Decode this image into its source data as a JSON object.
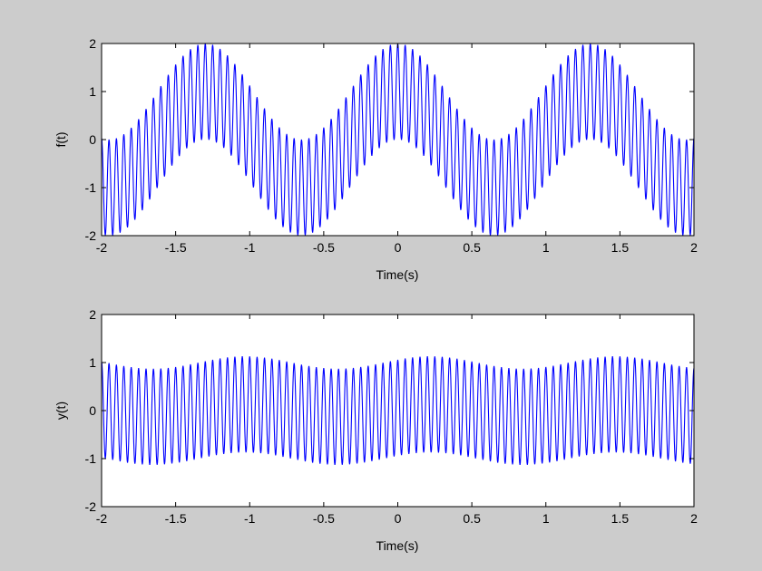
{
  "figure": {
    "background": "#cccccc",
    "plot_background": "#ffffff",
    "line_color": "#0000ff"
  },
  "chart_data": [
    {
      "type": "line",
      "title": "",
      "xlabel": "Time(s)",
      "ylabel": "f(t)",
      "xlim": [
        -2,
        2
      ],
      "ylim": [
        -2,
        2
      ],
      "xticks": [
        -2,
        -1.5,
        -1,
        -0.5,
        0,
        0.5,
        1,
        1.5,
        2
      ],
      "xtick_labels": [
        "-2",
        "-1.5",
        "-1",
        "-0.5",
        "0",
        "0.5",
        "1",
        "1.5",
        "2"
      ],
      "yticks": [
        -2,
        -1,
        0,
        1,
        2
      ],
      "ytick_labels": [
        "-2",
        "-1",
        "0",
        "1",
        "2"
      ],
      "grid": false,
      "series": [
        {
          "color": "#0000ff",
          "signal": "cos(2*pi*0.77*t) + cos(2*pi*20*t)",
          "sample_step": 0.0025
        }
      ]
    },
    {
      "type": "line",
      "title": "",
      "xlabel": "Time(s)",
      "ylabel": "y(t)",
      "xlim": [
        -2,
        2
      ],
      "ylim": [
        -2,
        2
      ],
      "xticks": [
        -2,
        -1.5,
        -1,
        -0.5,
        0,
        0.5,
        1,
        1.5,
        2
      ],
      "xtick_labels": [
        "-2",
        "-1.5",
        "-1",
        "-0.5",
        "0",
        "0.5",
        "1",
        "1.5",
        "2"
      ],
      "yticks": [
        -2,
        -1,
        0,
        1,
        2
      ],
      "ytick_labels": [
        "-2",
        "-1",
        "0",
        "1",
        "2"
      ],
      "grid": false,
      "series": [
        {
          "color": "#0000ff",
          "signal": "0.13*cos(2*pi*0.8*(t-0.22)) + cos(2*pi*20*t)",
          "sample_step": 0.0025
        }
      ]
    }
  ]
}
